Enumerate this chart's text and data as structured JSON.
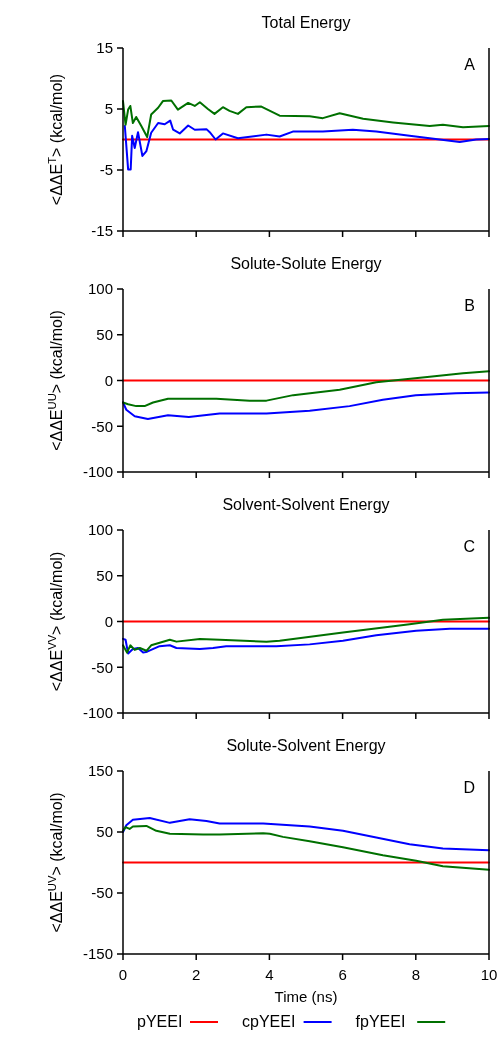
{
  "chart_data": [
    {
      "type": "line",
      "title": "Total Energy",
      "ylabel": "<ΔΔE$^{T}$> (kcal/mol)",
      "annotations": [
        "A"
      ],
      "xlim": [
        0,
        10
      ],
      "xticks": [
        0,
        2,
        4,
        6,
        8,
        10
      ],
      "ylim": [
        -15,
        15
      ],
      "yticks": [
        15,
        5,
        -5,
        -15
      ],
      "tick_labels": "y",
      "legend": false,
      "line_style": "solid",
      "series": [
        {
          "color": "#ff0000",
          "x": [
            0,
            10
          ],
          "values": [
            0,
            0
          ]
        },
        {
          "color": "#0000ff",
          "x": [
            0.05,
            0.14,
            0.21,
            0.25,
            0.32,
            0.41,
            0.53,
            0.64,
            0.77,
            0.96,
            1.14,
            1.29,
            1.37,
            1.55,
            1.78,
            1.96,
            2.28,
            2.37,
            2.53,
            2.73,
            3.14,
            3.92,
            4.28,
            4.64,
            5.46,
            6.28,
            6.92,
            7.83,
            8.38,
            9.2,
            9.65,
            10
          ],
          "values": [
            2.2,
            -4.9,
            -4.9,
            0.6,
            -1.4,
            1.2,
            -2.7,
            -1.9,
            1.1,
            2.7,
            2.5,
            3.1,
            1.6,
            1.0,
            2.3,
            1.6,
            1.7,
            1.2,
            0,
            1.0,
            0.2,
            0.8,
            0.5,
            1.3,
            1.3,
            1.6,
            1.3,
            0.6,
            0.2,
            -0.4,
            0,
            0.1
          ]
        },
        {
          "color": "#007000",
          "x": [
            0,
            0.07,
            0.14,
            0.2,
            0.27,
            0.36,
            0.5,
            0.66,
            0.77,
            0.96,
            1.09,
            1.32,
            1.5,
            1.78,
            1.96,
            2.1,
            2.32,
            2.5,
            2.73,
            2.91,
            3.14,
            3.37,
            3.78,
            4.28,
            5.1,
            5.46,
            5.92,
            6.56,
            7.38,
            8.38,
            8.74,
            9.29,
            10
          ],
          "values": [
            6.3,
            2.4,
            4.9,
            5.5,
            2.7,
            3.7,
            2.2,
            0.4,
            4.1,
            5.2,
            6.3,
            6.4,
            4.9,
            6.0,
            5.5,
            6.1,
            5.0,
            4.2,
            5.3,
            4.7,
            4.2,
            5.3,
            5.4,
            3.9,
            3.8,
            3.5,
            4.3,
            3.4,
            2.8,
            2.2,
            2.4,
            2.0,
            2.2
          ]
        }
      ]
    },
    {
      "type": "line",
      "title": "Solute-Solute Energy",
      "ylabel": "<ΔΔE$^{UU}$> (kcal/mol)",
      "annotations": [
        "B"
      ],
      "xlim": [
        0,
        10
      ],
      "xticks": [
        0,
        2,
        4,
        6,
        8,
        10
      ],
      "ylim": [
        -100,
        100
      ],
      "yticks": [
        100,
        50,
        0,
        -50,
        -100
      ],
      "tick_labels": "y",
      "legend": false,
      "line_style": "solid",
      "series": [
        {
          "color": "#ff0000",
          "x": [
            0,
            10
          ],
          "values": [
            0,
            0
          ]
        },
        {
          "color": "#0000ff",
          "x": [
            0,
            0.09,
            0.32,
            0.68,
            1.23,
            1.8,
            2.64,
            3.92,
            5.1,
            6.19,
            7.1,
            8,
            9.1,
            10
          ],
          "values": [
            -24,
            -32,
            -39,
            -42,
            -38,
            -40,
            -36,
            -36,
            -33,
            -28,
            -21,
            -16,
            -14,
            -13
          ]
        },
        {
          "color": "#007000",
          "x": [
            0,
            0.14,
            0.36,
            0.59,
            0.82,
            1.23,
            1.8,
            2.55,
            3.46,
            3.92,
            4.65,
            5.92,
            6.92,
            7.65,
            8.38,
            9.29,
            10
          ],
          "values": [
            -24,
            -26,
            -28,
            -28,
            -24,
            -20,
            -20,
            -20,
            -22,
            -22,
            -16,
            -10,
            -2,
            1,
            4,
            8,
            10
          ]
        }
      ]
    },
    {
      "type": "line",
      "title": "Solvent-Solvent Energy",
      "ylabel": "<ΔΔE$^{VV}$> (kcal/mol)",
      "annotations": [
        "C"
      ],
      "xlim": [
        0,
        10
      ],
      "xticks": [
        0,
        2,
        4,
        6,
        8,
        10
      ],
      "ylim": [
        -100,
        100
      ],
      "yticks": [
        100,
        50,
        0,
        -50,
        -100
      ],
      "tick_labels": "y",
      "legend": false,
      "line_style": "solid",
      "series": [
        {
          "color": "#ff0000",
          "x": [
            0,
            10
          ],
          "values": [
            0,
            0
          ]
        },
        {
          "color": "#0000ff",
          "x": [
            0,
            0.07,
            0.14,
            0.27,
            0.41,
            0.55,
            0.66,
            1,
            1.28,
            1.46,
            2.1,
            2.46,
            2.82,
            4.19,
            5.1,
            6.01,
            6.92,
            8.01,
            8.93,
            10
          ],
          "values": [
            -19,
            -20,
            -35,
            -30,
            -29,
            -34,
            -33,
            -27,
            -26,
            -29,
            -30,
            -29,
            -27,
            -27,
            -25,
            -21,
            -15,
            -10,
            -8,
            -8
          ]
        },
        {
          "color": "#007000",
          "x": [
            0,
            0.11,
            0.2,
            0.32,
            0.46,
            0.64,
            0.77,
            1.28,
            1.46,
            2.1,
            2.64,
            3.92,
            4.28,
            6.01,
            7.83,
            8.74,
            10
          ],
          "values": [
            -26,
            -34,
            -26,
            -31,
            -29,
            -32,
            -26,
            -20,
            -22,
            -19,
            -20,
            -22,
            -21,
            -12,
            -3,
            2,
            4
          ]
        }
      ]
    },
    {
      "type": "line",
      "title": "Solute-Solvent Energy",
      "ylabel": "<ΔΔE$^{UV}$> (kcal/mol)",
      "xlabel": "Time (ns)",
      "annotations": [
        "D"
      ],
      "xlim": [
        0,
        10
      ],
      "xticks": [
        0,
        2,
        4,
        6,
        8,
        10
      ],
      "ylim": [
        -150,
        150
      ],
      "yticks": [
        150,
        50,
        -50,
        -150
      ],
      "legend": "bottom",
      "line_style": "solid",
      "series": [
        {
          "name": "pYEEI",
          "color": "#ff0000",
          "x": [
            0,
            10
          ],
          "values": [
            0,
            0
          ]
        },
        {
          "name": "cpYEEI",
          "color": "#0000ff",
          "x": [
            0,
            0.09,
            0.27,
            0.73,
            1.28,
            1.82,
            2.28,
            2.64,
            3.83,
            5.1,
            6.01,
            6.92,
            7.83,
            8.74,
            10
          ],
          "values": [
            50,
            61,
            70,
            73,
            65,
            71,
            68,
            64,
            64,
            59,
            52,
            41,
            30,
            23,
            20
          ]
        },
        {
          "name": "fpYEEI",
          "color": "#007000",
          "x": [
            0,
            0.07,
            0.18,
            0.27,
            0.64,
            0.91,
            1.28,
            2.19,
            2.64,
            3.83,
            4.01,
            4.37,
            5.1,
            6.01,
            7.1,
            8.01,
            8.74,
            10
          ],
          "values": [
            52,
            58,
            55,
            59,
            60,
            52,
            47,
            46,
            46,
            48,
            47,
            42,
            35,
            25,
            12,
            3,
            -6,
            -12
          ]
        }
      ]
    }
  ]
}
